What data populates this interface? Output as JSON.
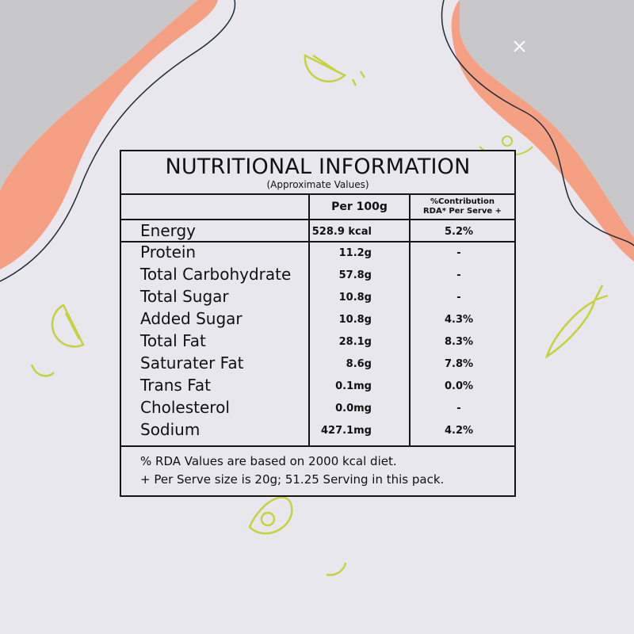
{
  "label": {
    "title": "NUTRITIONAL INFORMATION",
    "subtitle": "(Approximate Values)",
    "headers": {
      "per100g": "Per 100g",
      "rda_line1": "%Contribution",
      "rda_line2": "RDA* Per Serve +"
    },
    "energy": {
      "name": "Energy",
      "per100g": "528.9 kcal",
      "rda": "5.2%"
    },
    "rows": [
      {
        "name": "Protein",
        "per100g": "11.2g",
        "rda": "-"
      },
      {
        "name": "Total Carbohydrate",
        "per100g": "57.8g",
        "rda": "-"
      },
      {
        "name": "Total Sugar",
        "per100g": "10.8g",
        "rda": "-"
      },
      {
        "name": "Added Sugar",
        "per100g": "10.8g",
        "rda": "4.3%"
      },
      {
        "name": "Total Fat",
        "per100g": "28.1g",
        "rda": "8.3%"
      },
      {
        "name": "Saturater Fat",
        "per100g": "8.6g",
        "rda": "7.8%"
      },
      {
        "name": "Trans Fat",
        "per100g": "0.1mg",
        "rda": "0.0%"
      },
      {
        "name": "Cholesterol",
        "per100g": "0.0mg",
        "rda": "-"
      },
      {
        "name": "Sodium",
        "per100g": "427.1mg",
        "rda": "4.2%"
      }
    ],
    "footnotes": [
      "% RDA Values are based on 2000 kcal diet.",
      "+ Per Serve size is 20g; 51.25 Serving in this pack."
    ]
  },
  "colors": {
    "background": "#e8e7ed",
    "salmon": "#f5a083",
    "gray": "#c8c8ca",
    "doodle": "#c5d23a",
    "border": "#151515"
  },
  "decor_icons": [
    "lemon-slice-icon",
    "carrot-icon",
    "avocado-icon",
    "salad-bowl-icon",
    "sparkle-icon"
  ]
}
